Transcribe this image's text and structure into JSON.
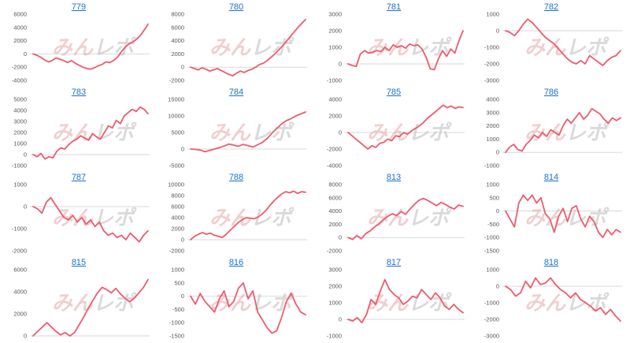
{
  "watermark": {
    "part1": "みん",
    "part2": "レポ"
  },
  "colors": {
    "line": "#ee5a6e",
    "title_link": "#1a6fd1",
    "zero_line": "#d9d9d9"
  },
  "chart_data": [
    {
      "type": "line",
      "title": "779",
      "yticks": [
        -4000,
        -2000,
        0,
        2000,
        4000,
        6000
      ],
      "values": [
        0,
        -200,
        -500,
        -900,
        -1200,
        -1000,
        -600,
        -800,
        -1000,
        -1300,
        -1000,
        -1400,
        -1700,
        -2000,
        -2200,
        -2300,
        -2100,
        -1800,
        -1600,
        -1200,
        -1300,
        -1000,
        -500,
        300,
        1000,
        1500,
        1800,
        2200,
        2800,
        3600,
        4500
      ]
    },
    {
      "type": "line",
      "title": "780",
      "yticks": [
        -2000,
        0,
        2000,
        4000,
        6000,
        8000
      ],
      "values": [
        0,
        -200,
        -400,
        -100,
        -300,
        -600,
        -400,
        -200,
        -500,
        -800,
        -1100,
        -1300,
        -900,
        -600,
        -800,
        -500,
        -300,
        0,
        400,
        600,
        1000,
        1500,
        2000,
        2600,
        3200,
        3900,
        4600,
        5300,
        6000,
        6600,
        7200
      ]
    },
    {
      "type": "line",
      "title": "781",
      "yticks": [
        -1000,
        0,
        1000,
        2000,
        3000
      ],
      "values": [
        0,
        -100,
        -150,
        600,
        800,
        650,
        700,
        800,
        750,
        1000,
        800,
        1150,
        1000,
        1100,
        950,
        1200,
        1100,
        1150,
        900,
        400,
        -300,
        -350,
        300,
        800,
        450,
        900,
        650,
        1400,
        2000
      ]
    },
    {
      "type": "line",
      "title": "782",
      "yticks": [
        -3000,
        -2000,
        -1000,
        0,
        1000
      ],
      "values": [
        0,
        -100,
        -300,
        0,
        400,
        700,
        500,
        200,
        -100,
        -400,
        -600,
        -800,
        -1100,
        -1400,
        -1700,
        -1900,
        -2000,
        -1800,
        -2000,
        -1500,
        -1700,
        -1900,
        -2100,
        -1800,
        -1600,
        -1500,
        -1200
      ]
    },
    {
      "type": "line",
      "title": "783",
      "yticks": [
        -1000,
        0,
        1000,
        2000,
        3000,
        4000,
        5000
      ],
      "values": [
        0,
        -200,
        100,
        -400,
        -200,
        -300,
        300,
        600,
        500,
        900,
        1200,
        1400,
        1700,
        1500,
        1300,
        1900,
        1600,
        1400,
        2000,
        2600,
        2400,
        3100,
        2800,
        3500,
        3800,
        4100,
        3900,
        4300,
        4100,
        3700
      ]
    },
    {
      "type": "line",
      "title": "784",
      "yticks": [
        -5000,
        0,
        5000,
        10000,
        15000
      ],
      "values": [
        0,
        -100,
        -300,
        -800,
        -400,
        0,
        400,
        900,
        1500,
        1200,
        800,
        1400,
        1000,
        600,
        1300,
        2000,
        3200,
        4800,
        6200,
        7600,
        8600,
        9200,
        10000,
        10600,
        11200
      ]
    },
    {
      "type": "line",
      "title": "785",
      "yticks": [
        -4000,
        -2000,
        0,
        2000,
        4000
      ],
      "values": [
        0,
        -400,
        -800,
        -1200,
        -1600,
        -2000,
        -1600,
        -1800,
        -1300,
        -1200,
        -800,
        -1000,
        -400,
        -500,
        0,
        -200,
        200,
        500,
        800,
        1200,
        1700,
        2100,
        2500,
        2900,
        3300,
        3000,
        3200,
        2900,
        3100,
        3000
      ]
    },
    {
      "type": "line",
      "title": "786",
      "yticks": [
        -1000,
        0,
        1000,
        2000,
        3000,
        4000
      ],
      "values": [
        0,
        400,
        600,
        200,
        100,
        600,
        900,
        1300,
        1100,
        1500,
        1200,
        1700,
        1500,
        1300,
        2000,
        2500,
        2200,
        2600,
        3000,
        2500,
        2800,
        3300,
        3100,
        2900,
        2500,
        2200,
        2600,
        2400,
        2600
      ]
    },
    {
      "type": "line",
      "title": "787",
      "yticks": [
        -2000,
        -1000,
        0,
        1000
      ],
      "values": [
        0,
        -100,
        -300,
        200,
        400,
        100,
        -200,
        -500,
        -600,
        -400,
        -700,
        -500,
        -800,
        -600,
        -900,
        -700,
        -1100,
        -1300,
        -1200,
        -1400,
        -1300,
        -1500,
        -1200,
        -1400,
        -1600,
        -1300,
        -1100
      ]
    },
    {
      "type": "line",
      "title": "788",
      "yticks": [
        -2000,
        0,
        2000,
        4000,
        6000,
        8000,
        10000
      ],
      "values": [
        0,
        600,
        1000,
        1300,
        1000,
        1200,
        800,
        600,
        400,
        1000,
        1700,
        2400,
        3100,
        3600,
        4000,
        3900,
        3800,
        4100,
        4600,
        5300,
        6200,
        7000,
        7700,
        8300,
        8700,
        8500,
        8800,
        8400,
        8700,
        8600
      ]
    },
    {
      "type": "line",
      "title": "813",
      "yticks": [
        -2000,
        0,
        2000,
        4000,
        6000,
        8000
      ],
      "values": [
        0,
        -300,
        300,
        -200,
        600,
        1000,
        1600,
        2100,
        2700,
        3200,
        3600,
        3300,
        3900,
        3500,
        4300,
        5000,
        5600,
        5900,
        5600,
        5200,
        4800,
        5300,
        5000,
        4600,
        4300,
        4900,
        4700
      ]
    },
    {
      "type": "line",
      "title": "814",
      "yticks": [
        -1500,
        -1000,
        -500,
        0,
        500,
        1000
      ],
      "values": [
        0,
        -300,
        -600,
        300,
        600,
        400,
        600,
        300,
        500,
        -100,
        -300,
        -800,
        -200,
        100,
        -400,
        100,
        200,
        -300,
        -600,
        -200,
        -400,
        -800,
        -1000,
        -700,
        -900,
        -700,
        -800
      ]
    },
    {
      "type": "line",
      "title": "815",
      "yticks": [
        0,
        2000,
        4000,
        6000
      ],
      "values": [
        0,
        400,
        800,
        1200,
        800,
        400,
        100,
        300,
        0,
        300,
        1000,
        1700,
        2500,
        3200,
        3900,
        4400,
        4200,
        3900,
        4300,
        3800,
        3400,
        3100,
        3400,
        3900,
        4400,
        5100
      ]
    },
    {
      "type": "line",
      "title": "816",
      "yticks": [
        -1500,
        -1000,
        -500,
        0,
        500,
        1000
      ],
      "values": [
        0,
        -300,
        100,
        -200,
        -400,
        -600,
        -100,
        200,
        -400,
        -200,
        300,
        500,
        -100,
        200,
        -600,
        -900,
        -1200,
        -1400,
        -1300,
        -800,
        -200,
        100,
        -300,
        -600,
        -700
      ]
    },
    {
      "type": "line",
      "title": "817",
      "yticks": [
        -1000,
        0,
        1000,
        2000,
        3000
      ],
      "values": [
        0,
        -100,
        100,
        -200,
        300,
        1200,
        900,
        1700,
        2400,
        1800,
        1500,
        1300,
        900,
        1100,
        1400,
        1300,
        1800,
        1500,
        1200,
        1600,
        1300,
        800,
        600,
        900,
        600,
        400
      ]
    },
    {
      "type": "line",
      "title": "818",
      "yticks": [
        -3000,
        -2000,
        -1000,
        0,
        1000
      ],
      "values": [
        0,
        -200,
        -600,
        -400,
        300,
        -100,
        500,
        100,
        200,
        500,
        100,
        -200,
        -400,
        -700,
        -400,
        -800,
        -1000,
        -1200,
        -1500,
        -1300,
        -1700,
        -1400,
        -1800,
        -2100
      ]
    }
  ]
}
